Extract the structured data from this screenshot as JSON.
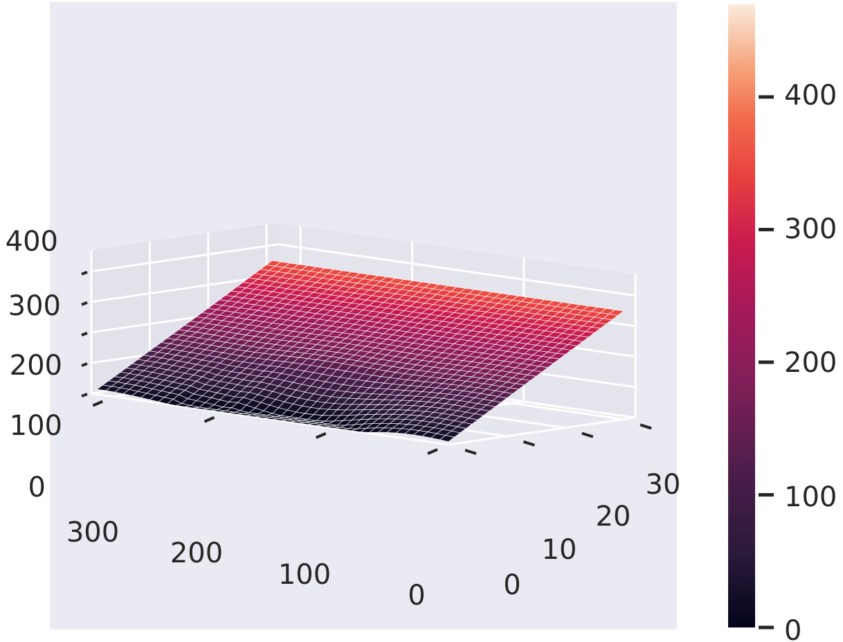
{
  "chart_data": {
    "type": "surface",
    "title": "",
    "xlabel": "",
    "ylabel": "",
    "zlabel": "",
    "xlim": [
      0,
      320
    ],
    "ylim": [
      0,
      32
    ],
    "zlim": [
      0,
      470
    ],
    "x_ticks": [
      "0",
      "100",
      "200",
      "300"
    ],
    "y_ticks": [
      "0",
      "10",
      "20",
      "30"
    ],
    "z_ticks": [
      "0",
      "100",
      "200",
      "300",
      "400"
    ],
    "x_range": [
      0,
      315
    ],
    "y_range": [
      0,
      30
    ],
    "grid_cols": 40,
    "grid_rows": 30,
    "surface_model": {
      "baseline": 10,
      "slope_y": 11.5,
      "notch_depth": 70,
      "notch_center_x": 155,
      "notch_extent_y": 12
    },
    "colorbar": {
      "range": [
        0,
        470
      ],
      "ticks": [
        "0",
        "100",
        "200",
        "300",
        "400"
      ],
      "colormap": "rocket"
    },
    "grid": true,
    "colors": {
      "pane": "#eaeaf2",
      "grid": "#ffffff",
      "text": "#262626",
      "tick_mark": "#262626"
    }
  }
}
